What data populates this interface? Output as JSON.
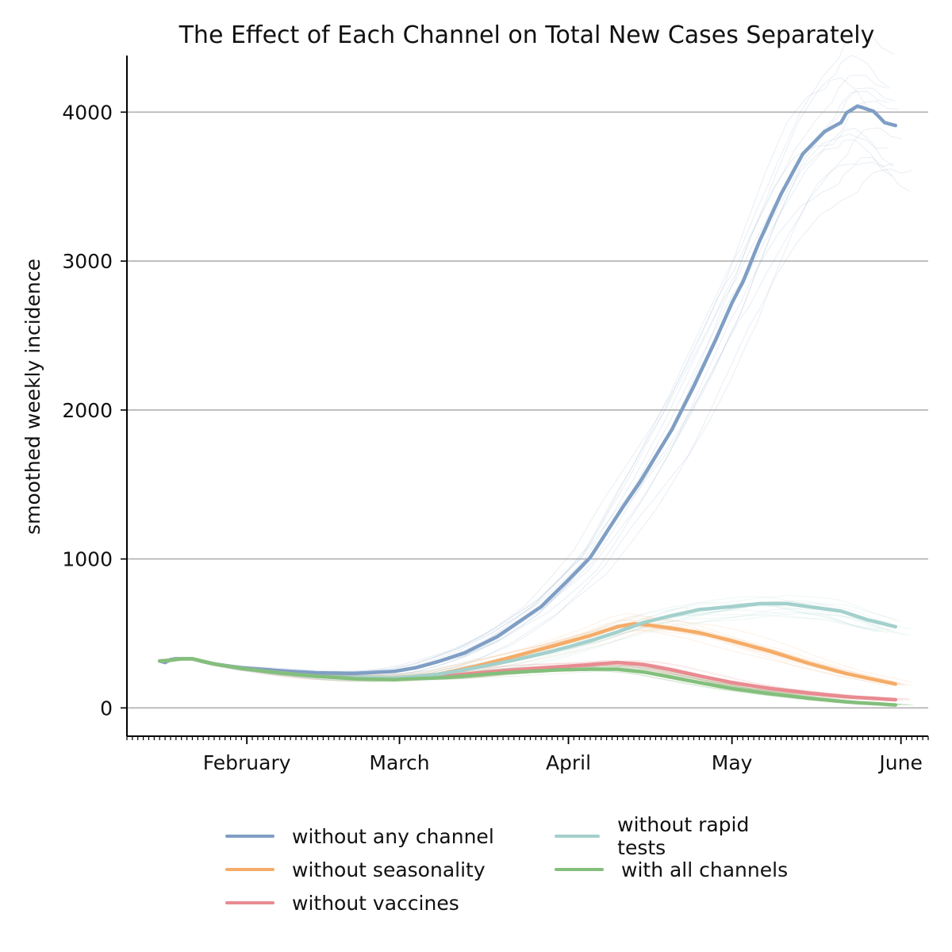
{
  "chart_data": {
    "type": "line",
    "title": "The Effect of Each Channel on Total New Cases Separately",
    "xlabel": "",
    "ylabel": "smoothed weekly incidence",
    "ylim": [
      -190,
      4380
    ],
    "xlim": [
      "2021-01-10",
      "2021-06-06"
    ],
    "yticks": [
      0,
      1000,
      2000,
      3000,
      4000
    ],
    "xticks": [
      {
        "date": "2021-02-01",
        "label": "February"
      },
      {
        "date": "2021-03-01",
        "label": "March"
      },
      {
        "date": "2021-04-01",
        "label": "April"
      },
      {
        "date": "2021-05-01",
        "label": "May"
      },
      {
        "date": "2021-06-01",
        "label": "June"
      }
    ],
    "grid": "horizontal",
    "legend_position": "bottom",
    "series": [
      {
        "name": "without any channel",
        "color": "#7f9ec4",
        "x": [
          "2021-01-16",
          "2021-01-17",
          "2021-01-18",
          "2021-01-19",
          "2021-01-20",
          "2021-01-22",
          "2021-01-24",
          "2021-01-26",
          "2021-01-31",
          "2021-02-07",
          "2021-02-14",
          "2021-02-21",
          "2021-02-28",
          "2021-03-04",
          "2021-03-08",
          "2021-03-13",
          "2021-03-19",
          "2021-03-23",
          "2021-03-27",
          "2021-04-01",
          "2021-04-05",
          "2021-04-08",
          "2021-04-11",
          "2021-04-14",
          "2021-04-17",
          "2021-04-20",
          "2021-04-24",
          "2021-04-28",
          "2021-05-01",
          "2021-05-03",
          "2021-05-06",
          "2021-05-10",
          "2021-05-14",
          "2021-05-18",
          "2021-05-21",
          "2021-05-22",
          "2021-05-24",
          "2021-05-25",
          "2021-05-27",
          "2021-05-29",
          "2021-05-31"
        ],
        "values": [
          315,
          305,
          325,
          330,
          330,
          330,
          310,
          295,
          270,
          250,
          235,
          232,
          245,
          270,
          310,
          370,
          480,
          580,
          680,
          860,
          1010,
          1180,
          1350,
          1510,
          1690,
          1870,
          2160,
          2470,
          2720,
          2860,
          3130,
          3450,
          3720,
          3870,
          3930,
          3995,
          4040,
          4030,
          4005,
          3930,
          3910
        ]
      },
      {
        "name": "without seasonality",
        "color": "#f5ac68",
        "x": [
          "2021-01-16",
          "2021-01-18",
          "2021-01-20",
          "2021-01-22",
          "2021-01-26",
          "2021-01-31",
          "2021-02-07",
          "2021-02-14",
          "2021-02-21",
          "2021-02-28",
          "2021-03-08",
          "2021-03-15",
          "2021-03-22",
          "2021-03-29",
          "2021-04-05",
          "2021-04-10",
          "2021-04-13",
          "2021-04-16",
          "2021-04-20",
          "2021-04-25",
          "2021-05-01",
          "2021-05-08",
          "2021-05-15",
          "2021-05-22",
          "2021-05-31"
        ],
        "values": [
          315,
          320,
          330,
          330,
          295,
          265,
          235,
          212,
          200,
          200,
          225,
          280,
          345,
          415,
          485,
          545,
          565,
          555,
          535,
          505,
          450,
          380,
          300,
          230,
          160
        ]
      },
      {
        "name": "without vaccines",
        "color": "#e88b91",
        "x": [
          "2021-01-16",
          "2021-01-18",
          "2021-01-20",
          "2021-01-22",
          "2021-01-26",
          "2021-01-31",
          "2021-02-07",
          "2021-02-14",
          "2021-02-21",
          "2021-02-28",
          "2021-03-10",
          "2021-03-20",
          "2021-03-30",
          "2021-04-05",
          "2021-04-10",
          "2021-04-15",
          "2021-04-20",
          "2021-04-25",
          "2021-05-01",
          "2021-05-08",
          "2021-05-15",
          "2021-05-22",
          "2021-05-31"
        ],
        "values": [
          315,
          320,
          330,
          330,
          295,
          265,
          235,
          212,
          200,
          195,
          215,
          250,
          275,
          290,
          305,
          290,
          255,
          215,
          170,
          130,
          100,
          75,
          55
        ]
      },
      {
        "name": "without rapid tests",
        "color": "#a3d0cc",
        "x": [
          "2021-01-16",
          "2021-01-18",
          "2021-01-20",
          "2021-01-22",
          "2021-01-26",
          "2021-01-31",
          "2021-02-07",
          "2021-02-14",
          "2021-02-21",
          "2021-02-28",
          "2021-03-08",
          "2021-03-15",
          "2021-03-22",
          "2021-03-29",
          "2021-04-05",
          "2021-04-10",
          "2021-04-15",
          "2021-04-20",
          "2021-04-25",
          "2021-05-01",
          "2021-05-06",
          "2021-05-11",
          "2021-05-16",
          "2021-05-21",
          "2021-05-26",
          "2021-05-31"
        ],
        "values": [
          315,
          320,
          330,
          330,
          295,
          265,
          235,
          212,
          200,
          200,
          225,
          270,
          320,
          380,
          450,
          510,
          575,
          620,
          660,
          680,
          700,
          700,
          675,
          650,
          590,
          545
        ]
      },
      {
        "name": "with all channels",
        "color": "#83bf7c",
        "x": [
          "2021-01-16",
          "2021-01-18",
          "2021-01-20",
          "2021-01-22",
          "2021-01-26",
          "2021-01-31",
          "2021-02-07",
          "2021-02-14",
          "2021-02-21",
          "2021-02-28",
          "2021-03-10",
          "2021-03-20",
          "2021-03-30",
          "2021-04-05",
          "2021-04-10",
          "2021-04-15",
          "2021-04-20",
          "2021-04-25",
          "2021-05-01",
          "2021-05-08",
          "2021-05-15",
          "2021-05-22",
          "2021-05-31"
        ],
        "values": [
          315,
          320,
          330,
          330,
          295,
          265,
          235,
          212,
          195,
          190,
          205,
          235,
          255,
          260,
          260,
          240,
          205,
          170,
          130,
          95,
          65,
          40,
          20
        ]
      }
    ]
  }
}
